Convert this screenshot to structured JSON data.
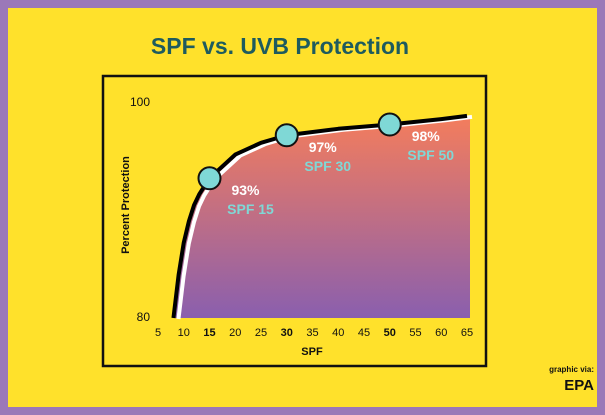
{
  "chart_data": {
    "type": "line",
    "title": "SPF vs. UVB Protection",
    "x_label": "SPF",
    "y_label": "Percent Protection",
    "x": [
      8,
      9,
      10,
      11,
      12,
      13,
      15,
      20,
      25,
      30,
      40,
      50,
      60,
      65
    ],
    "series": [
      {
        "color": "#000000",
        "values": [
          80,
          84,
          87,
          89,
          90.5,
          91.5,
          93,
          95.2,
          96.3,
          97,
          97.6,
          98,
          98.5,
          98.8
        ]
      }
    ],
    "highlights": {
      "x": [
        15,
        30,
        50
      ],
      "values": [
        93,
        97,
        98
      ],
      "value_labels": [
        "93%",
        "97%",
        "98%"
      ],
      "labels": [
        "SPF 15",
        "SPF 30",
        "SPF 50"
      ],
      "color": "#7fd8d6"
    },
    "fill_colors": [
      "#f47d5c",
      "#8a5fae"
    ],
    "xlim": [
      5,
      65
    ],
    "xticks": [
      5,
      10,
      15,
      20,
      25,
      30,
      35,
      40,
      45,
      50,
      55,
      60,
      65
    ],
    "bold_xticks": [
      15,
      30,
      50
    ],
    "ylim": [
      80,
      100
    ],
    "yticks": [
      80,
      100
    ],
    "grid": false,
    "credit": {
      "prefix": "graphic via:",
      "logo": "EPA"
    }
  }
}
